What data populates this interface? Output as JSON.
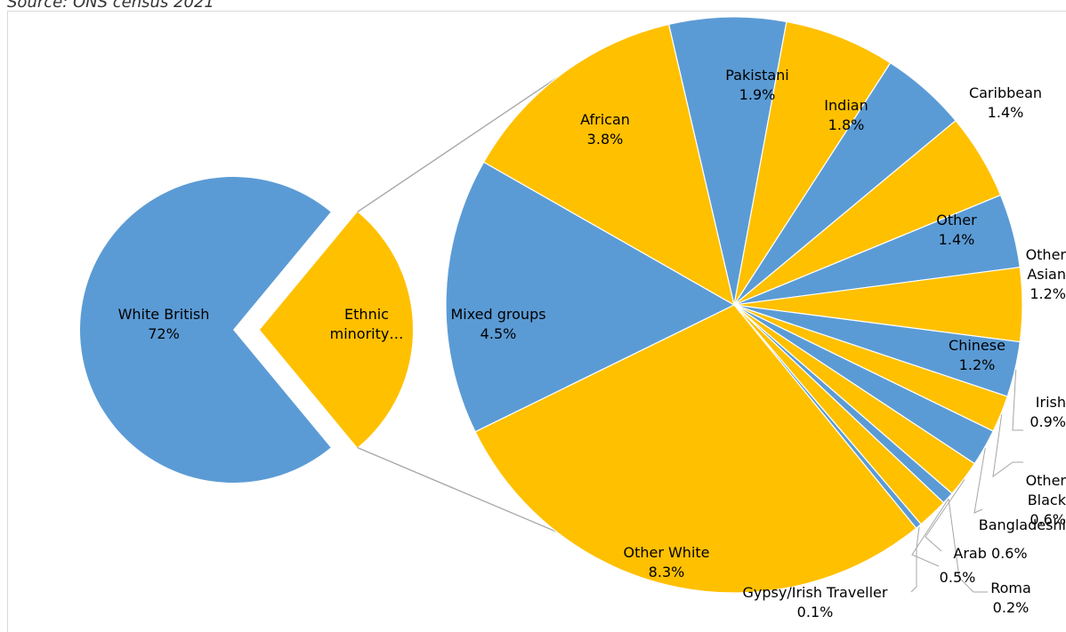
{
  "source": "Source: ONS census 2021",
  "colors": {
    "blue": "#5b9bd5",
    "gold": "#ffc000",
    "connector": "#a5a5a5"
  },
  "chart_data": {
    "type": "pie",
    "subtype": "pie-of-pie",
    "title": "",
    "primary": {
      "slices": [
        {
          "label": [
            "White British",
            "72%"
          ],
          "value": 72,
          "color": "blue"
        },
        {
          "label": [
            "Ethnic",
            "minority…"
          ],
          "value": 28,
          "color": "gold"
        }
      ]
    },
    "secondary": {
      "slices": [
        {
          "label": [
            "Pakistani",
            "1.9%"
          ],
          "value": 1.9,
          "color": "blue"
        },
        {
          "label": [
            "Indian",
            "1.8%"
          ],
          "value": 1.8,
          "color": "gold"
        },
        {
          "label": [
            "Caribbean",
            "1.4%"
          ],
          "value": 1.4,
          "color": "blue"
        },
        {
          "label": [
            "Other",
            "1.4%"
          ],
          "value": 1.4,
          "color": "gold"
        },
        {
          "label": [
            "Other",
            "Asian",
            "1.2%"
          ],
          "value": 1.2,
          "color": "blue"
        },
        {
          "label": [
            "Chinese",
            "1.2%"
          ],
          "value": 1.2,
          "color": "gold"
        },
        {
          "label": [
            "Irish",
            "0.9%"
          ],
          "value": 0.9,
          "color": "blue"
        },
        {
          "label": [
            "Other",
            "Black",
            "0.6%"
          ],
          "value": 0.6,
          "color": "gold"
        },
        {
          "label": [
            "Bangladeshi"
          ],
          "value": 0.6,
          "color": "blue"
        },
        {
          "label": [
            "Arab 0.6%"
          ],
          "value": 0.6,
          "color": "gold"
        },
        {
          "label": [
            "Roma",
            "0.2%"
          ],
          "value": 0.2,
          "color": "blue"
        },
        {
          "label": [
            "0.5%"
          ],
          "value": 0.5,
          "color": "gold"
        },
        {
          "label": [
            "Gypsy/Irish Traveller",
            "0.1%"
          ],
          "value": 0.1,
          "color": "blue"
        },
        {
          "label": [
            "Other White",
            "8.3%"
          ],
          "value": 8.3,
          "color": "gold"
        },
        {
          "label": [
            "Mixed groups",
            "4.5%"
          ],
          "value": 4.5,
          "color": "blue"
        },
        {
          "label": [
            "African",
            "3.8%"
          ],
          "value": 3.8,
          "color": "gold"
        }
      ]
    }
  }
}
